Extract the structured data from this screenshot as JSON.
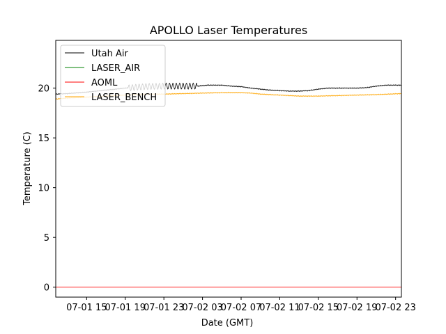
{
  "chart_data": {
    "type": "line",
    "title": "APOLLO Laser Temperatures",
    "xlabel": "Date (GMT)",
    "ylabel": "Temperature (C)",
    "xlim": [
      11.8,
      47.6
    ],
    "ylim": [
      -1.0,
      24.8
    ],
    "x_unit": "hours since 07-01 00:00 GMT",
    "x_ticks": [
      {
        "value": 15,
        "label": "07-01 15"
      },
      {
        "value": 19,
        "label": "07-01 19"
      },
      {
        "value": 23,
        "label": "07-01 23"
      },
      {
        "value": 27,
        "label": "07-02 03"
      },
      {
        "value": 31,
        "label": "07-02 07"
      },
      {
        "value": 35,
        "label": "07-02 11"
      },
      {
        "value": 39,
        "label": "07-02 15"
      },
      {
        "value": 43,
        "label": "07-02 19"
      },
      {
        "value": 47,
        "label": "07-02 23"
      }
    ],
    "y_ticks": [
      {
        "value": 0,
        "label": "0"
      },
      {
        "value": 5,
        "label": "5"
      },
      {
        "value": 10,
        "label": "10"
      },
      {
        "value": 15,
        "label": "15"
      },
      {
        "value": 20,
        "label": "20"
      }
    ],
    "legend_position": "top-left",
    "series": [
      {
        "name": "Utah Air",
        "color": "#000000",
        "oscillation": {
          "start": 19.3,
          "end": 26.4,
          "amplitude": 0.3,
          "period": 0.35
        },
        "x": [
          11.8,
          13,
          15,
          17,
          19,
          21,
          23,
          25,
          26.5,
          27.5,
          29,
          30,
          31,
          32,
          33,
          34,
          35,
          36,
          37,
          38,
          39,
          40,
          41,
          42,
          43,
          44,
          45,
          46,
          47.6
        ],
        "y": [
          19.4,
          19.45,
          19.6,
          19.8,
          20.0,
          20.15,
          20.2,
          20.2,
          20.2,
          20.3,
          20.3,
          20.2,
          20.15,
          20.0,
          19.9,
          19.8,
          19.75,
          19.7,
          19.7,
          19.75,
          19.9,
          20.0,
          20.0,
          20.0,
          20.0,
          20.05,
          20.2,
          20.3,
          20.3
        ]
      },
      {
        "name": "LASER_AIR",
        "color": "#008000",
        "x": [],
        "y": []
      },
      {
        "name": "AOML",
        "color": "#ff0000",
        "x": [
          11.8,
          47.6
        ],
        "y": [
          0.0,
          0.0
        ]
      },
      {
        "name": "LASER_BENCH",
        "color": "#ffa500",
        "x": [
          11.8,
          13,
          15,
          17,
          19,
          21,
          23,
          25,
          27,
          29,
          31,
          32,
          33,
          35,
          37,
          39,
          41,
          43,
          45,
          47.6
        ],
        "y": [
          18.9,
          19.0,
          19.1,
          19.2,
          19.3,
          19.4,
          19.4,
          19.45,
          19.5,
          19.55,
          19.55,
          19.5,
          19.4,
          19.3,
          19.2,
          19.2,
          19.25,
          19.3,
          19.35,
          19.45
        ]
      }
    ]
  }
}
